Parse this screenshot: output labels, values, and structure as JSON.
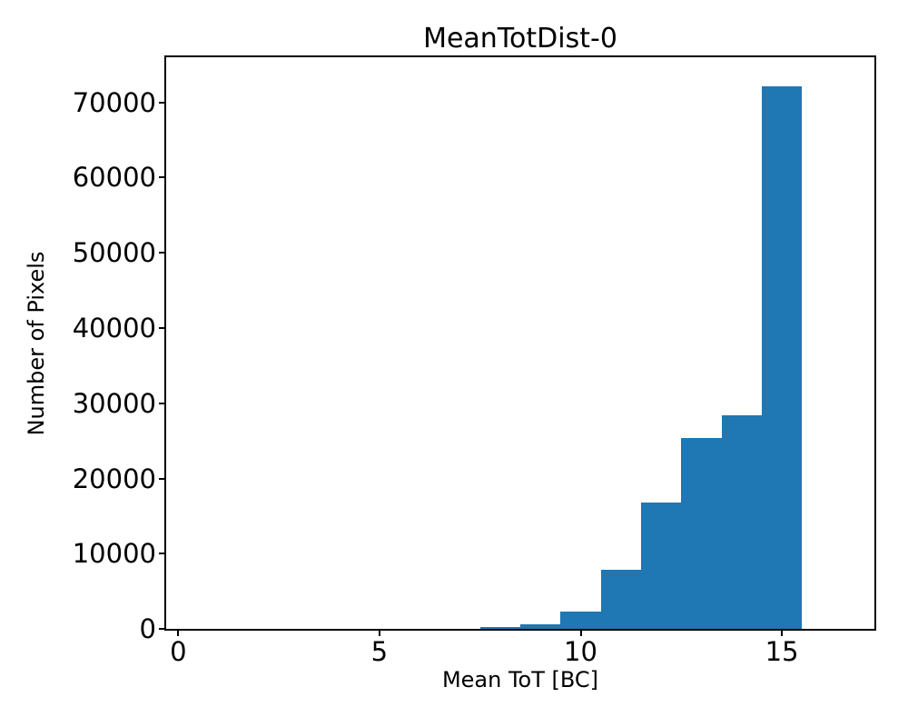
{
  "title": "MeanTotDist-0",
  "axes": {
    "xlabel": "Mean ToT [BC]",
    "ylabel": "Number of Pixels"
  },
  "chart_data": {
    "type": "bar",
    "subtype": "histogram",
    "title": "MeanTotDist-0",
    "xlabel": "Mean ToT [BC]",
    "ylabel": "Number of Pixels",
    "bar_color": "#1f77b4",
    "background_color": "#ffffff",
    "spine_color": "#000000",
    "grid": false,
    "legend": false,
    "bin_edges": [
      0.5,
      1.5,
      2.5,
      3.5,
      4.5,
      5.5,
      6.5,
      7.5,
      8.5,
      9.5,
      10.5,
      11.5,
      12.5,
      13.5,
      14.5,
      15.5,
      16.5
    ],
    "counts": [
      0,
      0,
      0,
      0,
      0,
      0,
      0,
      250,
      550,
      2300,
      7900,
      16800,
      25400,
      28400,
      72100,
      0
    ],
    "xlim": [
      -0.3,
      17.3
    ],
    "ylim": [
      0,
      76000
    ],
    "xticks": [
      {
        "value": 0,
        "label": "0"
      },
      {
        "value": 5,
        "label": "5"
      },
      {
        "value": 10,
        "label": "10"
      },
      {
        "value": 15,
        "label": "15"
      }
    ],
    "yticks": [
      {
        "value": 0,
        "label": "0"
      },
      {
        "value": 10000,
        "label": "10000"
      },
      {
        "value": 20000,
        "label": "20000"
      },
      {
        "value": 30000,
        "label": "30000"
      },
      {
        "value": 40000,
        "label": "40000"
      },
      {
        "value": 50000,
        "label": "50000"
      },
      {
        "value": 60000,
        "label": "60000"
      },
      {
        "value": 70000,
        "label": "70000"
      }
    ]
  }
}
